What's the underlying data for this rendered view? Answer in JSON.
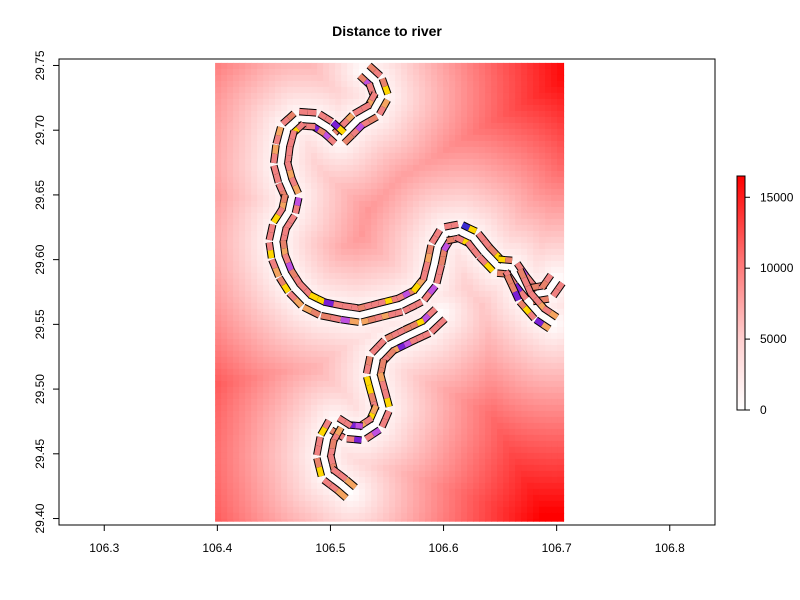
{
  "chart_data": {
    "type": "heatmap",
    "title": "Distance to river",
    "xlabel": "",
    "ylabel": "",
    "xlim": [
      106.26,
      106.84
    ],
    "ylim": [
      29.395,
      29.755
    ],
    "x_ticks": [
      106.3,
      106.4,
      106.5,
      106.6,
      106.7,
      106.8
    ],
    "x_tick_labels": [
      "106.3",
      "106.4",
      "106.5",
      "106.6",
      "106.7",
      "106.8"
    ],
    "y_ticks": [
      29.4,
      29.45,
      29.5,
      29.55,
      29.6,
      29.65,
      29.7,
      29.75
    ],
    "y_tick_labels": [
      "29.40",
      "29.45",
      "29.50",
      "29.55",
      "29.60",
      "29.65",
      "29.70",
      "29.75"
    ],
    "raster_extent": {
      "x": [
        106.398,
        106.706
      ],
      "y": [
        29.398,
        29.752
      ]
    },
    "colorbar": {
      "min": 0,
      "max": 16500,
      "ticks": [
        0,
        5000,
        10000,
        15000
      ],
      "tick_labels": [
        "0",
        "5000",
        "10000",
        "15000"
      ],
      "low_color": "#ffffff",
      "high_color": "#ff0000"
    },
    "river_segment_colors": [
      "#f08080",
      "#e8826a",
      "#f4a460",
      "#ffd700",
      "#c050e0",
      "#7a1fd6",
      "#3b2bd0"
    ],
    "river_centerline": [
      [
        106.53,
        29.746
      ],
      [
        106.54,
        29.738
      ],
      [
        106.545,
        29.726
      ],
      [
        106.538,
        29.715
      ],
      [
        106.524,
        29.708
      ],
      [
        106.515,
        29.7
      ],
      [
        106.508,
        29.694
      ],
      [
        106.498,
        29.702
      ],
      [
        106.487,
        29.708
      ],
      [
        106.472,
        29.709
      ],
      [
        106.462,
        29.701
      ],
      [
        106.458,
        29.688
      ],
      [
        106.456,
        29.674
      ],
      [
        106.46,
        29.661
      ],
      [
        106.466,
        29.649
      ],
      [
        106.463,
        29.637
      ],
      [
        106.455,
        29.626
      ],
      [
        106.452,
        29.614
      ],
      [
        106.454,
        29.602
      ],
      [
        106.46,
        29.589
      ],
      [
        106.468,
        29.578
      ],
      [
        106.479,
        29.568
      ],
      [
        106.493,
        29.562
      ],
      [
        106.51,
        29.559
      ],
      [
        106.526,
        29.557
      ],
      [
        106.544,
        29.561
      ],
      [
        106.562,
        29.565
      ],
      [
        106.578,
        29.572
      ],
      [
        106.588,
        29.583
      ],
      [
        106.592,
        29.597
      ],
      [
        106.595,
        29.61
      ],
      [
        106.602,
        29.62
      ],
      [
        106.614,
        29.622
      ],
      [
        106.626,
        29.617
      ],
      [
        106.636,
        29.606
      ],
      [
        106.648,
        29.595
      ],
      [
        106.66,
        29.594
      ],
      [
        106.668,
        29.584
      ],
      [
        106.678,
        29.573
      ],
      [
        106.692,
        29.575
      ],
      [
        106.7,
        29.585
      ]
    ],
    "lower_channel": [
      [
        106.597,
        29.558
      ],
      [
        106.585,
        29.548
      ],
      [
        106.568,
        29.541
      ],
      [
        106.552,
        29.534
      ],
      [
        106.541,
        29.524
      ],
      [
        106.538,
        29.511
      ],
      [
        106.542,
        29.498
      ],
      [
        106.546,
        29.485
      ],
      [
        106.54,
        29.473
      ],
      [
        106.528,
        29.466
      ],
      [
        106.515,
        29.467
      ],
      [
        106.504,
        29.473
      ],
      [
        106.497,
        29.462
      ],
      [
        106.494,
        29.448
      ],
      [
        106.498,
        29.434
      ],
      [
        106.51,
        29.426
      ],
      [
        106.518,
        29.42
      ]
    ],
    "outlet_channel": [
      [
        106.662,
        29.59
      ],
      [
        106.672,
        29.571
      ],
      [
        106.685,
        29.558
      ],
      [
        106.697,
        29.551
      ]
    ]
  }
}
